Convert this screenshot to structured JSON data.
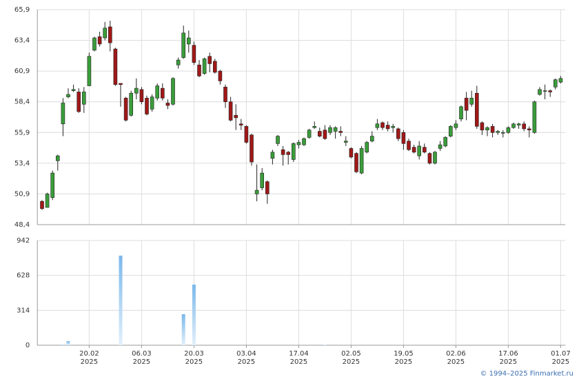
{
  "chart_data": [
    {
      "type": "candlestick",
      "ylim": [
        48.4,
        65.9
      ],
      "yticks": [
        {
          "value": 48.4,
          "label": "48,4"
        },
        {
          "value": 50.9,
          "label": "50,9"
        },
        {
          "value": 53.4,
          "label": "53,4"
        },
        {
          "value": 55.9,
          "label": "55,9"
        },
        {
          "value": 58.4,
          "label": "58,4"
        },
        {
          "value": 60.9,
          "label": "60,9"
        },
        {
          "value": 63.4,
          "label": "63,4"
        },
        {
          "value": 65.9,
          "label": "65,9"
        }
      ],
      "up_color": "#3a9d3a",
      "down_color": "#a01818",
      "grid": true,
      "open": [
        50.3,
        49.8,
        50.6,
        53.6,
        56.6,
        58.8,
        59.3,
        59.2,
        58.2,
        59.7,
        62.6,
        63.7,
        63.6,
        64.5,
        62.7,
        59.9,
        58.7,
        57.3,
        59.1,
        59.4,
        58.7,
        57.8,
        58.7,
        59.5,
        58.3,
        58.2,
        61.4,
        62.0,
        63.1,
        63.0,
        61.4,
        60.7,
        62.1,
        61.7,
        60.9,
        59.6,
        58.4,
        57.3,
        56.6,
        56.4,
        55.7,
        50.9,
        51.4,
        51.9,
        53.8,
        55.0,
        54.5,
        54.3,
        53.7,
        54.9,
        54.9,
        55.5,
        56.3,
        56.0,
        56.1,
        55.9,
        56.0,
        56.0,
        55.1,
        54.6,
        54.2,
        52.6,
        54.3,
        55.2,
        56.3,
        56.7,
        56.5,
        56.3,
        56.2,
        55.9,
        55.2,
        54.7,
        54.0,
        54.7,
        54.2,
        53.4,
        54.6,
        54.8,
        55.6,
        56.3,
        57.0,
        58.7,
        58.2,
        59.1,
        56.7,
        56.1,
        56.4,
        55.9,
        55.9,
        55.9,
        56.3,
        56.5,
        56.6,
        56.2,
        55.9,
        59.0,
        59.3,
        59.3,
        59.6,
        60.0
      ],
      "high": [
        50.4,
        51.0,
        52.8,
        54.1,
        58.7,
        59.5,
        59.8,
        59.5,
        59.6,
        62.4,
        63.7,
        64.1,
        64.9,
        65.0,
        62.8,
        59.9,
        58.8,
        59.3,
        60.3,
        59.6,
        58.9,
        59.0,
        59.9,
        59.9,
        58.6,
        60.4,
        62.0,
        64.6,
        64.2,
        63.3,
        61.8,
        62.0,
        62.4,
        61.9,
        61.0,
        59.8,
        58.8,
        58.2,
        57.0,
        56.5,
        55.8,
        53.3,
        53.0,
        52.0,
        54.5,
        55.7,
        54.8,
        54.4,
        55.1,
        55.3,
        55.5,
        56.2,
        56.8,
        56.3,
        56.5,
        56.5,
        56.4,
        56.4,
        55.6,
        54.7,
        54.3,
        54.8,
        55.2,
        56.0,
        57.0,
        56.8,
        56.8,
        56.6,
        56.3,
        56.1,
        55.4,
        54.9,
        55.2,
        55.0,
        54.3,
        54.4,
        55.2,
        55.6,
        56.5,
        56.9,
        58.1,
        59.2,
        59.3,
        59.7,
        56.8,
        56.4,
        56.6,
        56.1,
        56.1,
        56.4,
        56.7,
        56.7,
        56.8,
        56.4,
        58.5,
        59.6,
        59.8,
        59.4,
        60.3,
        60.5
      ],
      "low": [
        49.6,
        49.8,
        50.4,
        52.8,
        55.6,
        58.7,
        59.2,
        57.5,
        57.5,
        59.7,
        62.5,
        62.9,
        63.4,
        62.5,
        59.7,
        58.0,
        56.8,
        57.2,
        58.6,
        58.2,
        57.3,
        57.6,
        58.5,
        58.5,
        57.8,
        58.1,
        61.1,
        61.9,
        62.4,
        61.4,
        60.4,
        60.6,
        60.8,
        60.7,
        59.8,
        57.9,
        56.8,
        56.1,
        56.1,
        55.0,
        53.2,
        50.3,
        51.2,
        50.1,
        53.3,
        54.8,
        53.2,
        53.3,
        53.5,
        54.6,
        54.8,
        55.4,
        56.2,
        55.5,
        55.3,
        55.7,
        55.4,
        55.6,
        54.8,
        53.8,
        52.6,
        52.5,
        54.2,
        55.1,
        56.1,
        56.1,
        56.0,
        55.9,
        55.2,
        54.5,
        54.4,
        54.2,
        53.7,
        54.2,
        53.3,
        53.3,
        54.4,
        54.7,
        55.5,
        56.1,
        56.8,
        56.9,
        58.0,
        56.2,
        55.7,
        55.6,
        55.5,
        55.7,
        55.5,
        55.8,
        56.2,
        56.2,
        56.0,
        55.5,
        55.8,
        58.9,
        58.6,
        58.8,
        59.4,
        59.9
      ],
      "close": [
        49.7,
        50.9,
        52.6,
        54.0,
        58.3,
        59.0,
        59.4,
        57.6,
        59.2,
        62.1,
        63.6,
        63.1,
        64.4,
        63.2,
        59.8,
        59.8,
        56.9,
        59.1,
        59.5,
        58.4,
        57.4,
        58.8,
        59.7,
        58.7,
        58.1,
        60.3,
        61.8,
        64.0,
        63.6,
        61.6,
        60.5,
        61.9,
        61.5,
        60.8,
        60.1,
        58.4,
        56.9,
        57.1,
        56.5,
        55.1,
        53.5,
        51.2,
        52.6,
        50.9,
        54.3,
        55.6,
        54.1,
        54.1,
        55.0,
        55.1,
        55.4,
        56.1,
        56.4,
        55.6,
        55.4,
        56.3,
        56.3,
        55.9,
        55.2,
        53.9,
        52.7,
        54.6,
        55.1,
        55.6,
        56.6,
        56.3,
        56.2,
        56.4,
        55.4,
        55.0,
        54.5,
        54.3,
        54.8,
        54.3,
        53.4,
        54.3,
        54.9,
        55.5,
        56.4,
        56.6,
        58.0,
        57.7,
        58.7,
        56.4,
        56.1,
        56.3,
        55.9,
        56.0,
        55.9,
        56.3,
        56.6,
        56.6,
        56.2,
        56.1,
        58.4,
        59.4,
        59.3,
        59.2,
        60.2,
        60.3
      ]
    },
    {
      "type": "bar",
      "ylim": [
        0,
        942
      ],
      "yticks": [
        0,
        314,
        628,
        942
      ],
      "color": "#7ab8ea",
      "grid": true,
      "categories": [
        null,
        null,
        null,
        null,
        null,
        null,
        null,
        null,
        null,
        [
          "20.02",
          "2025"
        ],
        null,
        null,
        null,
        null,
        null,
        null,
        null,
        null,
        null,
        [
          "06.03",
          "2025"
        ],
        null,
        null,
        null,
        null,
        null,
        null,
        null,
        null,
        null,
        [
          "20.03",
          "2025"
        ],
        null,
        null,
        null,
        null,
        null,
        null,
        null,
        null,
        null,
        [
          "03.04",
          "2025"
        ],
        null,
        null,
        null,
        null,
        null,
        null,
        null,
        null,
        null,
        [
          "17.04",
          "2025"
        ],
        null,
        null,
        null,
        null,
        null,
        null,
        null,
        null,
        null,
        [
          "02.05",
          "2025"
        ],
        null,
        null,
        null,
        null,
        null,
        null,
        null,
        null,
        null,
        [
          "19.05",
          "2025"
        ],
        null,
        null,
        null,
        null,
        null,
        null,
        null,
        null,
        null,
        [
          "02.06",
          "2025"
        ],
        null,
        null,
        null,
        null,
        null,
        null,
        null,
        null,
        null,
        [
          "17.06",
          "2025"
        ],
        null,
        null,
        null,
        null,
        null,
        null,
        null,
        null,
        null,
        [
          "01.07",
          "2025"
        ]
      ],
      "values": [
        0,
        0,
        0,
        0,
        5,
        37,
        0,
        0,
        0,
        0,
        0,
        0,
        0,
        0,
        0,
        806,
        0,
        0,
        0,
        0,
        0,
        0,
        0,
        0,
        0,
        0,
        0,
        279,
        0,
        545,
        0,
        0,
        0,
        0,
        0,
        0,
        0,
        0,
        0,
        0,
        0,
        0,
        0,
        0,
        0,
        0,
        0,
        0,
        0,
        0,
        0,
        0,
        0,
        0,
        3,
        0,
        0,
        0,
        0,
        0,
        0,
        0,
        0,
        0,
        0,
        0,
        0,
        0,
        0,
        0,
        0,
        0,
        0,
        0,
        0,
        0,
        0,
        0,
        0,
        0,
        0,
        0,
        0,
        0,
        0,
        0,
        0,
        0,
        0,
        0,
        0,
        0,
        0,
        0,
        0,
        0,
        0,
        0,
        0,
        0
      ]
    }
  ],
  "credit": "© 1994–2025 Finmarket.ru"
}
